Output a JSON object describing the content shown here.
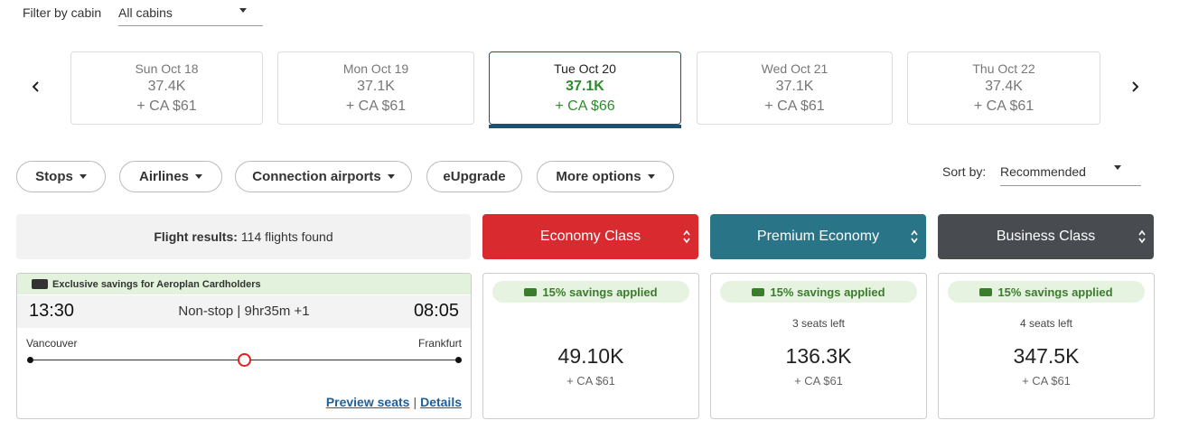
{
  "filter": {
    "label": "Filter by cabin",
    "value": "All cabins"
  },
  "dates": [
    {
      "day": "Sun Oct 18",
      "points": "37.4K",
      "cash": "+ CA $61"
    },
    {
      "day": "Mon Oct 19",
      "points": "37.1K",
      "cash": "+ CA $61"
    },
    {
      "day": "Tue Oct 20",
      "points": "37.1K",
      "cash": "+ CA $66",
      "selected": true
    },
    {
      "day": "Wed Oct 21",
      "points": "37.1K",
      "cash": "+ CA $61"
    },
    {
      "day": "Thu Oct 22",
      "points": "37.4K",
      "cash": "+ CA $61"
    }
  ],
  "filters": [
    {
      "label": "Stops",
      "dropdown": true
    },
    {
      "label": "Airlines",
      "dropdown": true
    },
    {
      "label": "Connection airports",
      "dropdown": true
    },
    {
      "label": "eUpgrade",
      "dropdown": false
    },
    {
      "label": "More options",
      "dropdown": true
    }
  ],
  "sort": {
    "label": "Sort by:",
    "value": "Recommended"
  },
  "results": {
    "label": "Flight results:",
    "count": "114 flights found"
  },
  "cabins": [
    {
      "label": "Economy Class",
      "color": "#d92b2f"
    },
    {
      "label": "Premium Economy",
      "color": "#2a7488"
    },
    {
      "label": "Business Class",
      "color": "#484b50"
    }
  ],
  "flight": {
    "banner": "Exclusive savings for Aeroplan Cardholders",
    "depart": "13:30",
    "info": "Non-stop | 9hr35m +1",
    "arrive": "08:05",
    "origin": "Vancouver",
    "destination": "Frankfurt",
    "links": [
      "Preview seats",
      "Details"
    ],
    "link_separator": "|"
  },
  "fares": [
    {
      "savings": "15% savings applied",
      "points": "49.10K",
      "cash": "+ CA $61"
    },
    {
      "savings": "15% savings applied",
      "seats": "3 seats left",
      "points": "136.3K",
      "cash": "+ CA $61"
    },
    {
      "savings": "15% savings applied",
      "seats": "4 seats left",
      "points": "347.5K",
      "cash": "+ CA $61"
    }
  ]
}
